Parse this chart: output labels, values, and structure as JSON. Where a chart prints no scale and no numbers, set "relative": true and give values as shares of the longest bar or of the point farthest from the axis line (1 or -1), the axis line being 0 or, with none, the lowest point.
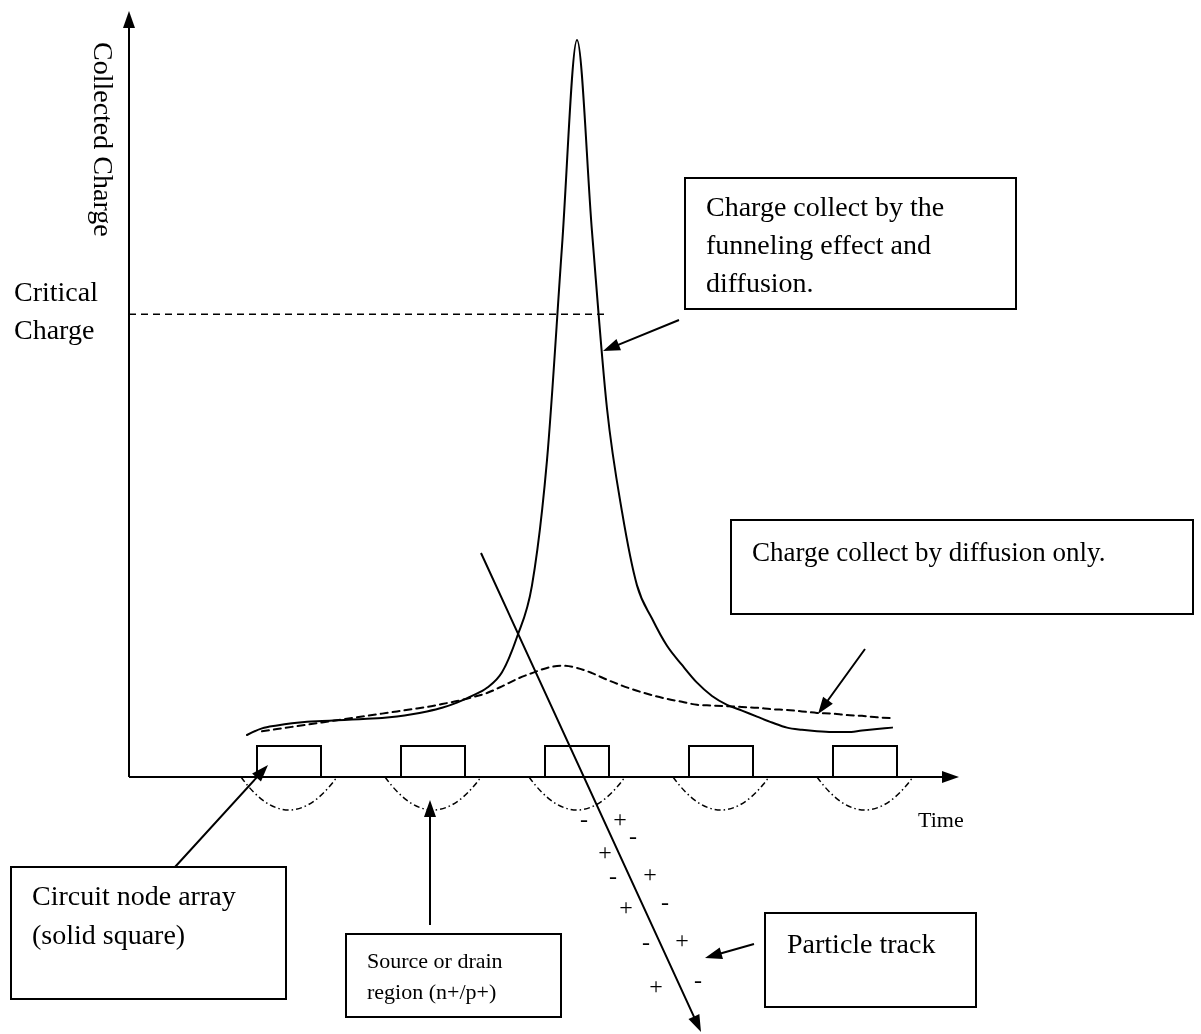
{
  "chart_data": {
    "type": "line",
    "relative": true,
    "tick_labels": false,
    "grid": false,
    "xlabel": "Time",
    "ylabel": "Collected Charge",
    "categories": [
      null,
      null,
      null,
      null,
      null,
      null,
      null,
      null,
      null,
      null,
      null,
      null,
      null,
      null,
      null,
      null,
      null,
      null,
      null,
      null,
      null,
      null,
      null,
      null,
      null,
      null,
      null,
      null,
      null,
      null,
      null,
      null,
      null,
      null,
      null,
      null,
      null,
      null,
      null,
      null,
      null,
      null,
      null,
      null
    ],
    "series": [
      {
        "color": "#000000",
        "line_style": "solid",
        "values": [
          0.057,
          0.066,
          0.07,
          0.073,
          0.075,
          0.076,
          0.077,
          0.078,
          0.079,
          0.08,
          0.082,
          0.085,
          0.089,
          0.094,
          0.101,
          0.11,
          0.121,
          0.142,
          0.19,
          0.26,
          0.43,
          0.72,
          1.0,
          0.74,
          0.5,
          0.36,
          0.26,
          0.215,
          0.178,
          0.152,
          0.128,
          0.11,
          0.098,
          0.09,
          0.082,
          0.074,
          0.067,
          0.064,
          0.062,
          0.061,
          0.061,
          0.063,
          0.065,
          0.067
        ]
      },
      {
        "color": "#000000",
        "line_style": "dashed",
        "values": [
          null,
          0.062,
          0.065,
          0.068,
          0.071,
          0.074,
          0.077,
          0.08,
          0.083,
          0.086,
          0.089,
          0.092,
          0.095,
          0.099,
          0.103,
          0.108,
          0.114,
          0.123,
          0.133,
          0.141,
          0.148,
          0.151,
          0.148,
          0.141,
          0.132,
          0.124,
          0.117,
          0.111,
          0.106,
          0.102,
          0.098,
          0.097,
          0.096,
          0.095,
          0.094,
          0.092,
          0.091,
          0.089,
          0.087,
          0.086,
          0.084,
          0.083,
          0.081,
          0.08
        ]
      }
    ],
    "ref_lines": [
      {
        "axis": "y",
        "value": 0.628,
        "label": "Critical\nCharge",
        "line_style": "dashed",
        "color": "#000000"
      }
    ],
    "annotations": [
      "Charge collect by the\nfunneling effect and\ndiffusion.",
      "Charge collect by diffusion only.",
      "Circuit node array\n(solid square)",
      "Source or drain\nregion (n+/p+)",
      "Particle track",
      "-",
      "+",
      "-",
      "+",
      "-",
      "+",
      "+",
      "-",
      "-",
      "+",
      "+",
      "-"
    ]
  }
}
